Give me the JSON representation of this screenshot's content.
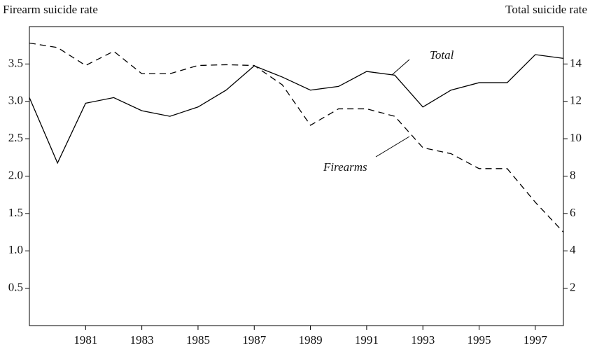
{
  "chart_data": {
    "type": "line",
    "ylabel": "Firearm suicide rate",
    "y2label": "Total suicide rate",
    "x": [
      1979,
      1980,
      1981,
      1982,
      1983,
      1984,
      1985,
      1986,
      1987,
      1988,
      1989,
      1990,
      1991,
      1992,
      1993,
      1994,
      1995,
      1996,
      1997,
      1998
    ],
    "xlim": [
      1979,
      1998
    ],
    "xticks": [
      1981,
      1983,
      1985,
      1987,
      1989,
      1991,
      1993,
      1995,
      1997
    ],
    "ylim": [
      0,
      4
    ],
    "yticks": [
      0.5,
      {
        "value": 1,
        "label": "1.0"
      },
      1.5,
      {
        "value": 2,
        "label": "2.0"
      },
      2.5,
      {
        "value": 3,
        "label": "3.0"
      },
      3.5
    ],
    "y2lim": [
      0,
      16
    ],
    "y2ticks": [
      2,
      4,
      6,
      8,
      10,
      12,
      14
    ],
    "series": [
      {
        "name": "Total",
        "color": "#000000",
        "line_style": "solid",
        "axis": "y2",
        "values": [
          12.2,
          8.7,
          11.9,
          12.2,
          11.5,
          11.2,
          11.7,
          12.6,
          13.9,
          13.3,
          12.6,
          12.8,
          13.6,
          13.4,
          11.7,
          12.6,
          13.0,
          13.0,
          14.5,
          14.3
        ]
      },
      {
        "name": "Firearms",
        "color": "#000000",
        "line_style": "dashed",
        "axis": "y",
        "values": [
          3.78,
          3.72,
          3.48,
          3.67,
          3.37,
          3.37,
          3.48,
          3.49,
          3.48,
          3.22,
          2.68,
          2.9,
          2.9,
          2.8,
          2.38,
          2.3,
          2.1,
          2.1,
          1.65,
          1.25
        ]
      }
    ]
  }
}
